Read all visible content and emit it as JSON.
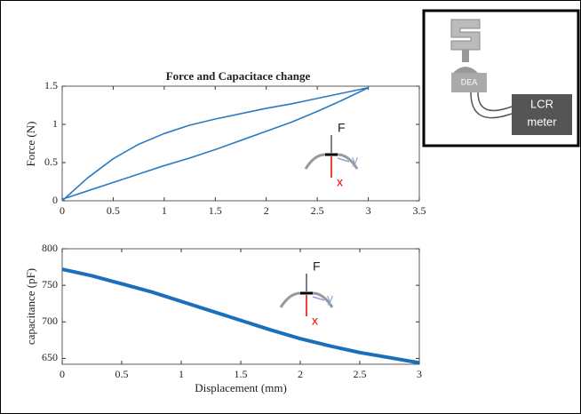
{
  "chart_data": [
    {
      "type": "line",
      "title": "Force and Capacitace change",
      "ylabel": "Force (N)",
      "xlim": [
        0,
        3.5
      ],
      "xticks": [
        0,
        0.5,
        1,
        1.5,
        2,
        2.5,
        3,
        3.5
      ],
      "ylim": [
        0,
        1.5
      ],
      "yticks": [
        0,
        0.5,
        1,
        1.5
      ],
      "series": [
        {
          "color": "#2a7bc0",
          "x": [
            0,
            0.25,
            0.5,
            0.75,
            1,
            1.25,
            1.5,
            1.75,
            2,
            2.25,
            2.5,
            2.75,
            3,
            2.75,
            2.5,
            2.25,
            2,
            1.75,
            1.5,
            1.25,
            1,
            0.75,
            0.5,
            0.25,
            0
          ],
          "values": [
            0,
            0.3,
            0.55,
            0.74,
            0.88,
            0.99,
            1.07,
            1.14,
            1.21,
            1.27,
            1.34,
            1.41,
            1.48,
            1.32,
            1.17,
            1.03,
            0.91,
            0.79,
            0.67,
            0.56,
            0.46,
            0.35,
            0.24,
            0.13,
            0.02
          ]
        }
      ],
      "annotations": [
        "F",
        "y",
        "x"
      ]
    },
    {
      "type": "line",
      "xlabel": "Displacement (mm)",
      "ylabel": "capacitance (pF)",
      "xlim": [
        0,
        3
      ],
      "xticks": [
        0,
        0.5,
        1,
        1.5,
        2,
        2.5,
        3
      ],
      "ylim": [
        642,
        800
      ],
      "yticks": [
        650,
        700,
        750,
        800
      ],
      "series": [
        {
          "color": "#1a6fbd",
          "x": [
            0,
            0.25,
            0.5,
            0.75,
            1,
            1.25,
            1.5,
            1.75,
            2,
            2.25,
            2.5,
            2.75,
            3
          ],
          "values": [
            772,
            763,
            752,
            741,
            728,
            715,
            702,
            689,
            677,
            667,
            658,
            651,
            644
          ]
        }
      ],
      "annotations": [
        "F",
        "y",
        "x"
      ]
    }
  ],
  "setup_diagram": {
    "dea_label": "DEA",
    "meter_label": [
      "LCR",
      "meter"
    ]
  }
}
